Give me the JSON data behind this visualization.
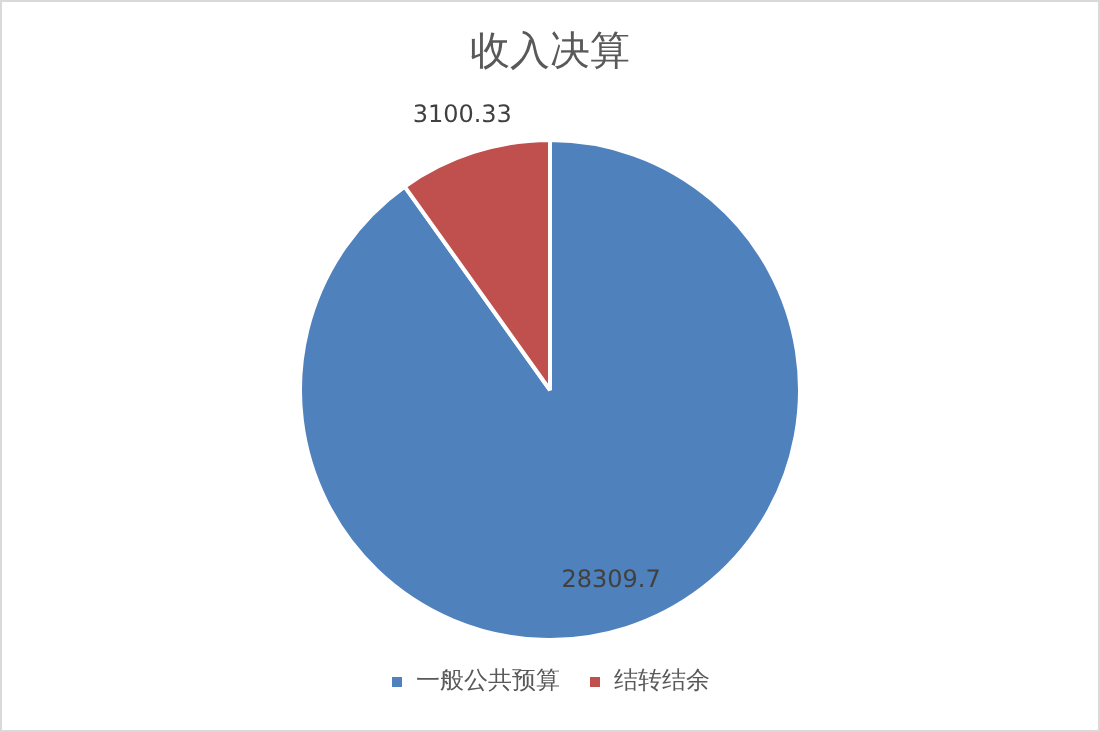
{
  "chart_data": {
    "type": "pie",
    "title": "收入决算",
    "categories": [
      "一般公共预算",
      "结转结余"
    ],
    "values": [
      28309.7,
      3100.33
    ],
    "colors": [
      "#4f81bd",
      "#c0504d"
    ],
    "data_labels": true,
    "legend": "bottom"
  }
}
